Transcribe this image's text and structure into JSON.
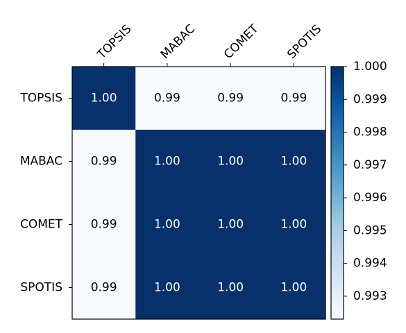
{
  "chart_data": {
    "type": "heatmap",
    "x_categories": [
      "TOPSIS",
      "MABAC",
      "COMET",
      "SPOTIS"
    ],
    "y_categories": [
      "TOPSIS",
      "MABAC",
      "COMET",
      "SPOTIS"
    ],
    "values": [
      [
        1.0,
        0.9923,
        0.9923,
        0.9923
      ],
      [
        0.9923,
        1.0,
        1.0,
        1.0
      ],
      [
        0.9923,
        1.0,
        1.0,
        1.0
      ],
      [
        0.9923,
        1.0,
        1.0,
        1.0
      ]
    ],
    "value_labels": [
      [
        "1.00",
        "0.99",
        "0.99",
        "0.99"
      ],
      [
        "0.99",
        "1.00",
        "1.00",
        "1.00"
      ],
      [
        "0.99",
        "1.00",
        "1.00",
        "1.00"
      ],
      [
        "0.99",
        "1.00",
        "1.00",
        "1.00"
      ]
    ],
    "colormap": "Blues",
    "clim": [
      0.9923,
      1.0
    ],
    "colorbar_ticks": [
      0.993,
      0.994,
      0.995,
      0.996,
      0.997,
      0.998,
      0.999,
      {
        "value": 1.0,
        "label": "1.000"
      }
    ]
  }
}
